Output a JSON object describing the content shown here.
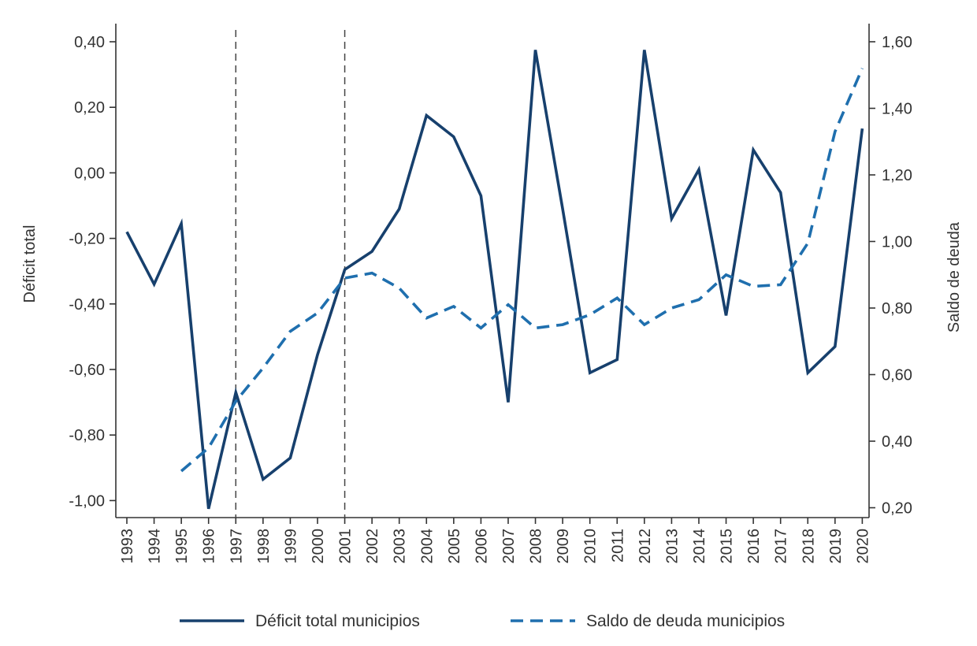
{
  "chart_data": {
    "type": "line",
    "x": [
      1993,
      1994,
      1995,
      1996,
      1997,
      1998,
      1999,
      2000,
      2001,
      2002,
      2003,
      2004,
      2005,
      2006,
      2007,
      2008,
      2009,
      2010,
      2011,
      2012,
      2013,
      2014,
      2015,
      2016,
      2017,
      2018,
      2019,
      2020
    ],
    "x_tick_labels": [
      "1993",
      "1994",
      "1995",
      "1996",
      "1997",
      "1998",
      "1999",
      "2000",
      "2001",
      "2002",
      "2003",
      "2004",
      "2005",
      "2006",
      "2007",
      "2008",
      "2009",
      "2010",
      "2011",
      "2012",
      "2013",
      "2014",
      "2015",
      "2016",
      "2017",
      "2018",
      "2019",
      "2020"
    ],
    "ylabel_left": "Déficit total",
    "ylabel_right": "Saldo de deuda",
    "ylim_left": [
      -1.05,
      0.44
    ],
    "ylim_right": [
      0.19,
      1.63
    ],
    "yticks_left": [
      "0,40",
      "0,20",
      "0,00",
      "-0,20",
      "-0,40",
      "-0,60",
      "-0,80",
      "-1,00"
    ],
    "yticks_left_values": [
      0.4,
      0.2,
      0.0,
      -0.2,
      -0.4,
      -0.6,
      -0.8,
      -1.0
    ],
    "yticks_right": [
      "1,60",
      "1,40",
      "1,20",
      "1,00",
      "0,80",
      "0,60",
      "0,40",
      "0,20"
    ],
    "yticks_right_values": [
      1.6,
      1.4,
      1.2,
      1.0,
      0.8,
      0.6,
      0.4,
      0.2
    ],
    "vlines": [
      1997,
      2001
    ],
    "grid": false,
    "legend_position": "bottom",
    "series": [
      {
        "name": "Déficit total municipios",
        "axis": "left",
        "style": "solid",
        "color": "#17406d",
        "values": [
          -0.18,
          -0.34,
          -0.155,
          -1.025,
          -0.67,
          -0.935,
          -0.87,
          -0.555,
          -0.295,
          -0.24,
          -0.11,
          0.175,
          0.11,
          -0.07,
          -0.7,
          0.375,
          -0.11,
          -0.61,
          -0.57,
          0.375,
          -0.14,
          0.01,
          -0.435,
          0.07,
          -0.06,
          -0.61,
          -0.53,
          0.135
        ]
      },
      {
        "name": "Saldo de deuda municipios",
        "axis": "right",
        "style": "dashed",
        "color": "#1f6fae",
        "values": [
          null,
          null,
          0.31,
          0.38,
          0.52,
          0.62,
          0.73,
          0.785,
          0.89,
          0.905,
          0.86,
          0.77,
          0.805,
          0.74,
          0.81,
          0.74,
          0.75,
          0.78,
          0.83,
          0.75,
          0.8,
          0.825,
          0.9,
          0.865,
          0.87,
          0.995,
          1.33,
          1.52
        ]
      }
    ]
  }
}
